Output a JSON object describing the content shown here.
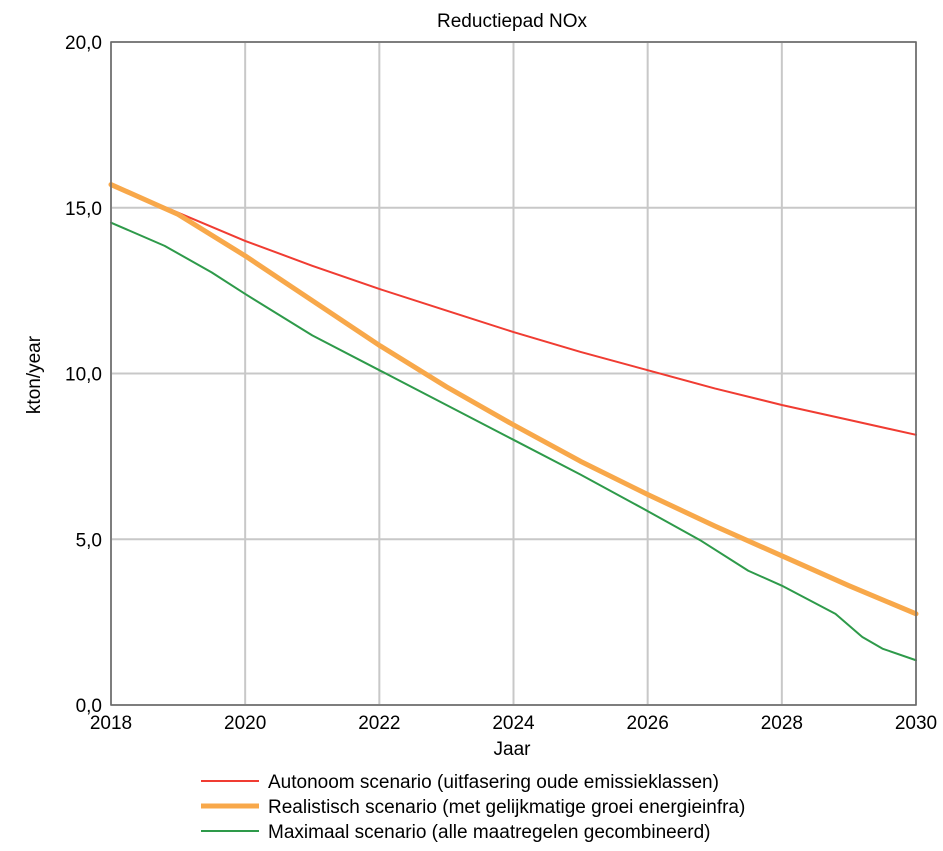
{
  "chart_data": {
    "type": "line",
    "title": "Reductiepad NOx",
    "xlabel": "Jaar",
    "ylabel": "kton/year",
    "xlim": [
      2018,
      2030
    ],
    "ylim": [
      0,
      20
    ],
    "x_ticks": [
      2018,
      2020,
      2022,
      2024,
      2026,
      2028,
      2030
    ],
    "x_tick_labels": [
      "2018",
      "2020",
      "2022",
      "2024",
      "2026",
      "2028",
      "2030"
    ],
    "y_ticks": [
      0,
      5,
      10,
      15,
      20
    ],
    "y_tick_labels": [
      "0,0",
      "5,0",
      "10,0",
      "15,0",
      "20,0"
    ],
    "grid": true,
    "legend_position": "bottom",
    "series": [
      {
        "name": "Autonoom scenario (uitfasering oude emissieklassen)",
        "color": "#f03c32",
        "x": [
          2018,
          2019,
          2020,
          2021,
          2022,
          2023,
          2024,
          2025,
          2026,
          2027,
          2028,
          2029,
          2030
        ],
        "y": [
          15.7,
          14.85,
          14.0,
          13.25,
          12.55,
          11.9,
          11.25,
          10.65,
          10.1,
          9.55,
          9.05,
          8.6,
          8.15
        ]
      },
      {
        "name": "Realistisch scenario (met gelijkmatige groei energieinfra)",
        "color": "#f8a84a",
        "x": [
          2018,
          2019,
          2020,
          2021,
          2022,
          2023,
          2024,
          2025,
          2026,
          2027,
          2028,
          2029,
          2030
        ],
        "y": [
          15.7,
          14.8,
          13.55,
          12.2,
          10.85,
          9.6,
          8.45,
          7.35,
          6.35,
          5.4,
          4.5,
          3.6,
          2.75
        ]
      },
      {
        "name": "Maximaal scenario (alle maatregelen gecombineerd)",
        "color": "#2e9a4a",
        "x": [
          2018,
          2018.8,
          2019.5,
          2020,
          2021,
          2022,
          2023,
          2024,
          2025,
          2026,
          2026.8,
          2027.5,
          2028,
          2028.8,
          2029.2,
          2029.5,
          2030
        ],
        "y": [
          14.55,
          13.85,
          13.05,
          12.4,
          11.15,
          10.1,
          9.05,
          8.0,
          6.95,
          5.85,
          4.95,
          4.05,
          3.6,
          2.75,
          2.05,
          1.7,
          1.35
        ]
      }
    ]
  }
}
